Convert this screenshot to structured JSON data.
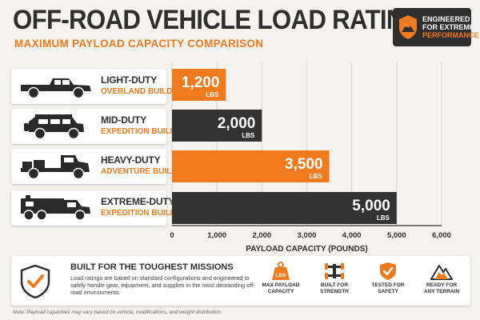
{
  "header": {
    "title": "OFF-ROAD VEHICLE LOAD RATINGS",
    "subtitle": "MAXIMUM PAYLOAD CAPACITY COMPARISON"
  },
  "badge": {
    "line1": "ENGINEERED",
    "line2": "FOR EXTREME",
    "line3": "PERFORMANCE",
    "icon": "mountain-icon"
  },
  "vehicles": [
    {
      "category": "LIGHT-DUTY",
      "build": "OVERLAND BUILD",
      "icon": "pickup-truck-icon"
    },
    {
      "category": "MID-DUTY",
      "build": "EXPEDITION BUILD",
      "icon": "suv-icon"
    },
    {
      "category": "HEAVY-DUTY",
      "build": "ADVENTURE BUILD",
      "icon": "flatbed-truck-icon"
    },
    {
      "category": "EXTREME-DUTY",
      "build": "EXPEDITION BUILD",
      "icon": "expedition-truck-icon"
    }
  ],
  "chart_data": {
    "type": "bar",
    "orientation": "horizontal",
    "categories": [
      "LIGHT-DUTY",
      "MID-DUTY",
      "HEAVY-DUTY",
      "EXTREME-DUTY"
    ],
    "values": [
      1200,
      2000,
      3500,
      5000
    ],
    "value_labels": [
      "1,200",
      "2,000",
      "3,500",
      "5,000"
    ],
    "unit_label": "LBS",
    "xlabel": "PAYLOAD CAPACITY (POUNDS)",
    "xlim": [
      0,
      6000
    ],
    "xticks": [
      0,
      1000,
      2000,
      3000,
      4000,
      5000,
      6000
    ],
    "xtick_labels": [
      "0",
      "1,000",
      "2,000",
      "3,000",
      "4,000",
      "5,000",
      "6,000"
    ],
    "grid": true,
    "colors": [
      "#f07a1e",
      "#333333",
      "#f07a1e",
      "#333333"
    ]
  },
  "footer": {
    "title": "BUILT FOR THE TOUGHEST MISSIONS",
    "body": "Load ratings are based on standard configurations and engineered to safely handle gear, equipment, and supplies in the most demanding off-road environments.",
    "features": [
      {
        "icon": "weight-icon",
        "line1": "MAX PAYLOAD",
        "line2": "CAPACITY",
        "badge": "LBS"
      },
      {
        "icon": "chassis-icon",
        "line1": "BUILT FOR",
        "line2": "STRENGTH"
      },
      {
        "icon": "check-shield-icon",
        "line1": "TESTED FOR",
        "line2": "SAFETY"
      },
      {
        "icon": "mountain-icon",
        "line1": "READY FOR",
        "line2": "ANY TERRAIN"
      }
    ]
  },
  "note": "Note: Payload capacities may vary based on vehicle, modifications, and weight distribution.",
  "colors": {
    "accent": "#f07a1e",
    "dark": "#333333",
    "background": "#f4f3f0"
  }
}
